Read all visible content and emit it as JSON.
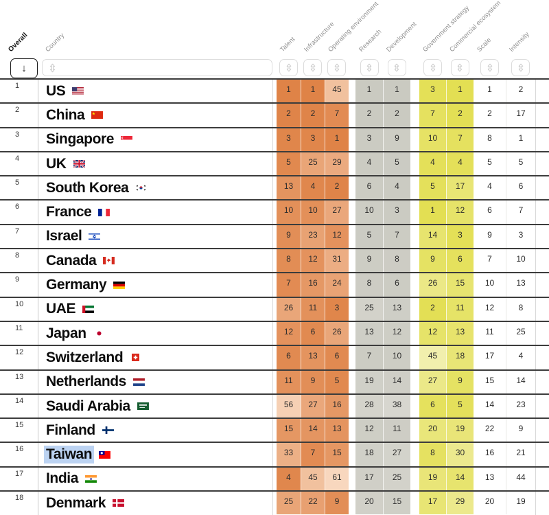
{
  "header": {
    "overall": {
      "label": "Overall",
      "sort_glyph": "↓"
    },
    "country": {
      "label": "Country"
    },
    "columns": [
      {
        "key": "talent",
        "label": "Talent",
        "group": "resources"
      },
      {
        "key": "infrastructure",
        "label": "Infrastructure",
        "group": "resources"
      },
      {
        "key": "operating-environment",
        "label": "Operating environment",
        "group": "resources"
      },
      {
        "key": "research",
        "label": "Research",
        "group": "innovation"
      },
      {
        "key": "development",
        "label": "Development",
        "group": "innovation"
      },
      {
        "key": "government-strategy",
        "label": "Government strategy",
        "group": "investment"
      },
      {
        "key": "commercial-ecosystem",
        "label": "Commercial ecosystem",
        "group": "investment"
      },
      {
        "key": "scale",
        "label": "Scale",
        "group": "plain"
      },
      {
        "key": "intensity",
        "label": "Intensity",
        "group": "plain"
      }
    ]
  },
  "colors": {
    "row_line": "#3c3c3c",
    "selection": "#bcd3f2",
    "ramps": {
      "resources": {
        "from": "#df8347",
        "to": "#f8d7be",
        "max": 61
      },
      "innovation": {
        "from": "#cacac1",
        "to": "#d8d7d0",
        "max": 40
      },
      "investment": {
        "from": "#e3df53",
        "to": "#f1efaf",
        "max": 46
      }
    }
  },
  "rows": [
    {
      "rank": 1,
      "country": "US",
      "flag": "us",
      "selected": false,
      "values": [
        1,
        1,
        45,
        1,
        1,
        3,
        1,
        1,
        2
      ]
    },
    {
      "rank": 2,
      "country": "China",
      "flag": "cn",
      "selected": false,
      "values": [
        2,
        2,
        7,
        2,
        2,
        7,
        2,
        2,
        17
      ]
    },
    {
      "rank": 3,
      "country": "Singapore",
      "flag": "sg",
      "selected": false,
      "values": [
        3,
        3,
        1,
        3,
        9,
        10,
        7,
        8,
        1
      ]
    },
    {
      "rank": 4,
      "country": "UK",
      "flag": "gb",
      "selected": false,
      "values": [
        5,
        25,
        29,
        4,
        5,
        4,
        4,
        5,
        5
      ]
    },
    {
      "rank": 5,
      "country": "South Korea",
      "flag": "kr",
      "selected": false,
      "values": [
        13,
        4,
        2,
        6,
        4,
        5,
        17,
        4,
        6
      ]
    },
    {
      "rank": 6,
      "country": "France",
      "flag": "fr",
      "selected": false,
      "values": [
        10,
        10,
        27,
        10,
        3,
        1,
        12,
        6,
        7
      ]
    },
    {
      "rank": 7,
      "country": "Israel",
      "flag": "il",
      "selected": false,
      "values": [
        9,
        23,
        12,
        5,
        7,
        14,
        3,
        9,
        3
      ]
    },
    {
      "rank": 8,
      "country": "Canada",
      "flag": "ca",
      "selected": false,
      "values": [
        8,
        12,
        31,
        9,
        8,
        9,
        6,
        7,
        10
      ]
    },
    {
      "rank": 9,
      "country": "Germany",
      "flag": "de",
      "selected": false,
      "values": [
        7,
        16,
        24,
        8,
        6,
        26,
        15,
        10,
        13
      ]
    },
    {
      "rank": 10,
      "country": "UAE",
      "flag": "ae",
      "selected": false,
      "values": [
        26,
        11,
        3,
        25,
        13,
        2,
        11,
        12,
        8
      ]
    },
    {
      "rank": 11,
      "country": "Japan",
      "flag": "jp",
      "selected": false,
      "values": [
        12,
        6,
        26,
        13,
        12,
        12,
        13,
        11,
        25
      ]
    },
    {
      "rank": 12,
      "country": "Switzerland",
      "flag": "ch",
      "selected": false,
      "values": [
        6,
        13,
        6,
        7,
        10,
        45,
        18,
        17,
        4
      ]
    },
    {
      "rank": 13,
      "country": "Netherlands",
      "flag": "nl",
      "selected": false,
      "values": [
        11,
        9,
        5,
        19,
        14,
        27,
        9,
        15,
        14
      ]
    },
    {
      "rank": 14,
      "country": "Saudi Arabia",
      "flag": "sa",
      "selected": false,
      "values": [
        56,
        27,
        16,
        28,
        38,
        6,
        5,
        14,
        23
      ]
    },
    {
      "rank": 15,
      "country": "Finland",
      "flag": "fi",
      "selected": false,
      "values": [
        15,
        14,
        13,
        12,
        11,
        20,
        19,
        22,
        9
      ]
    },
    {
      "rank": 16,
      "country": "Taiwan",
      "flag": "tw",
      "selected": true,
      "values": [
        33,
        7,
        15,
        18,
        27,
        8,
        30,
        16,
        21
      ]
    },
    {
      "rank": 17,
      "country": "India",
      "flag": "in",
      "selected": false,
      "values": [
        4,
        45,
        61,
        17,
        25,
        19,
        14,
        13,
        44
      ]
    },
    {
      "rank": 18,
      "country": "Denmark",
      "flag": "dk",
      "selected": false,
      "values": [
        25,
        22,
        9,
        20,
        15,
        17,
        29,
        20,
        19
      ]
    }
  ]
}
